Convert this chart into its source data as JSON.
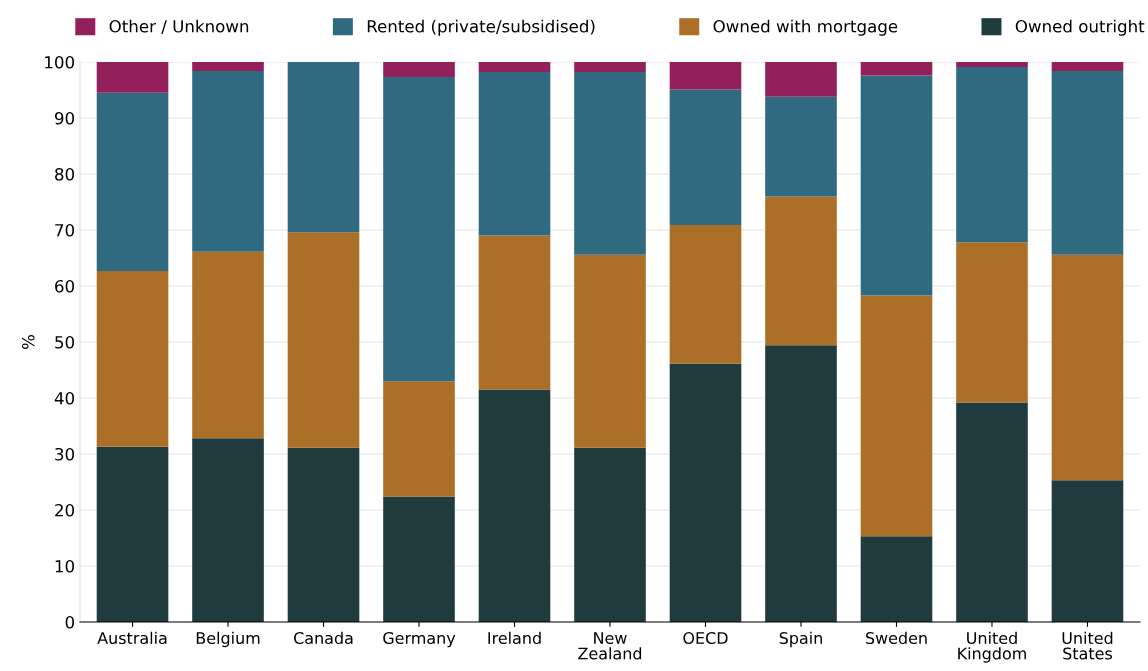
{
  "chart_data": {
    "type": "bar",
    "stacked": true,
    "ylabel": "%",
    "categories": [
      "Australia",
      "Belgium",
      "Canada",
      "Germany",
      "Ireland",
      "New\nZealand",
      "OECD",
      "Spain",
      "Sweden",
      "United\nKingdom",
      "United\nStates"
    ],
    "series": [
      {
        "name": "Owned outright",
        "color": "#1f3b3e",
        "values": [
          31.3,
          32.8,
          31.1,
          22.4,
          41.5,
          31.1,
          46.1,
          49.4,
          15.3,
          39.2,
          25.3
        ]
      },
      {
        "name": "Owned with mortgage",
        "color": "#ab6f28",
        "values": [
          31.4,
          33.3,
          38.5,
          20.6,
          27.5,
          34.5,
          24.8,
          26.6,
          43.0,
          28.6,
          40.3
        ]
      },
      {
        "name": "Rented (private/subsidised)",
        "color": "#306a80",
        "values": [
          31.8,
          32.3,
          30.4,
          54.3,
          29.2,
          32.6,
          24.2,
          17.8,
          39.3,
          31.3,
          32.8
        ]
      },
      {
        "name": "Other / Unknown",
        "color": "#93205a",
        "values": [
          5.5,
          1.6,
          0,
          2.7,
          1.8,
          1.8,
          4.9,
          6.2,
          2.4,
          0.9,
          1.6
        ]
      }
    ],
    "ylim": [
      0,
      100
    ],
    "yticks": [
      0,
      10,
      20,
      30,
      40,
      50,
      60,
      70,
      80,
      90,
      100
    ],
    "grid": "y",
    "legend": "top"
  }
}
